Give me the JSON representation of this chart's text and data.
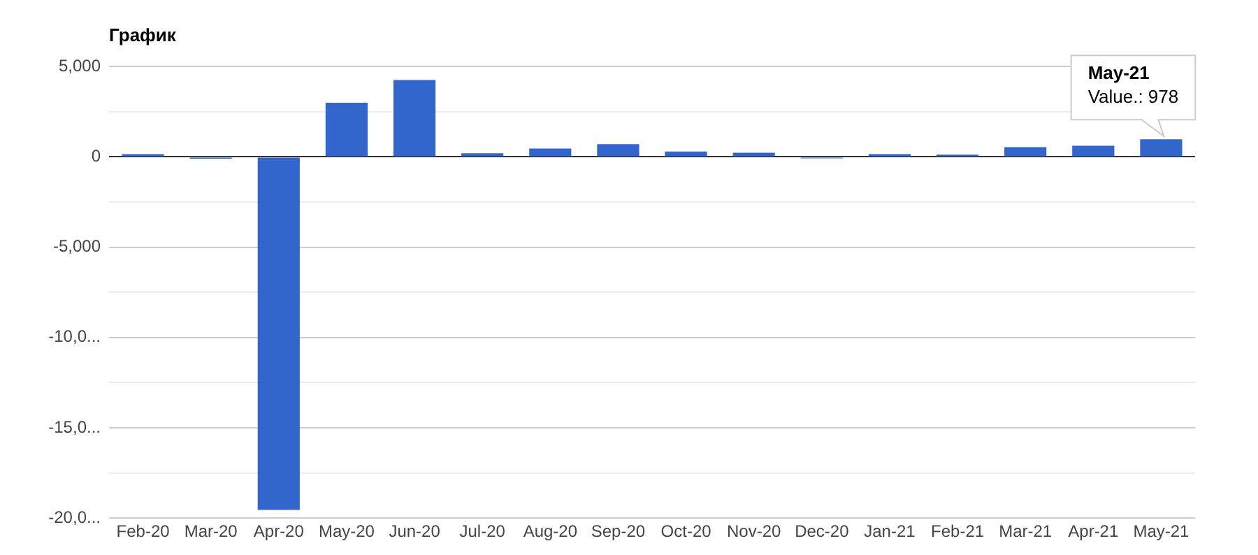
{
  "chart_data": {
    "type": "bar",
    "title": "График",
    "categories": [
      "Feb-20",
      "Mar-20",
      "Apr-20",
      "May-20",
      "Jun-20",
      "Jul-20",
      "Aug-20",
      "Sep-20",
      "Oct-20",
      "Nov-20",
      "Dec-20",
      "Jan-21",
      "Feb-21",
      "Mar-21",
      "Apr-21",
      "May-21"
    ],
    "values": [
      150,
      -100,
      -19550,
      3000,
      4250,
      200,
      460,
      700,
      300,
      230,
      -80,
      150,
      120,
      540,
      620,
      978
    ],
    "color": "#3366cc",
    "ylim": [
      -20000,
      5000
    ],
    "yticks": [
      {
        "value": -20000,
        "label": "-20,0..."
      },
      {
        "value": -17500,
        "label": null
      },
      {
        "value": -15000,
        "label": "-15,0..."
      },
      {
        "value": -12500,
        "label": null
      },
      {
        "value": -10000,
        "label": "-10,0..."
      },
      {
        "value": -7500,
        "label": null
      },
      {
        "value": -5000,
        "label": "-5,000"
      },
      {
        "value": -2500,
        "label": null
      },
      0,
      {
        "value": 2500,
        "label": null
      },
      {
        "value": 5000,
        "label": "5,000"
      }
    ],
    "grid": "y",
    "legend": false,
    "annotations": [
      {
        "text": "May-21\nValue.: 978",
        "x": "May-21",
        "y": 978
      }
    ]
  }
}
